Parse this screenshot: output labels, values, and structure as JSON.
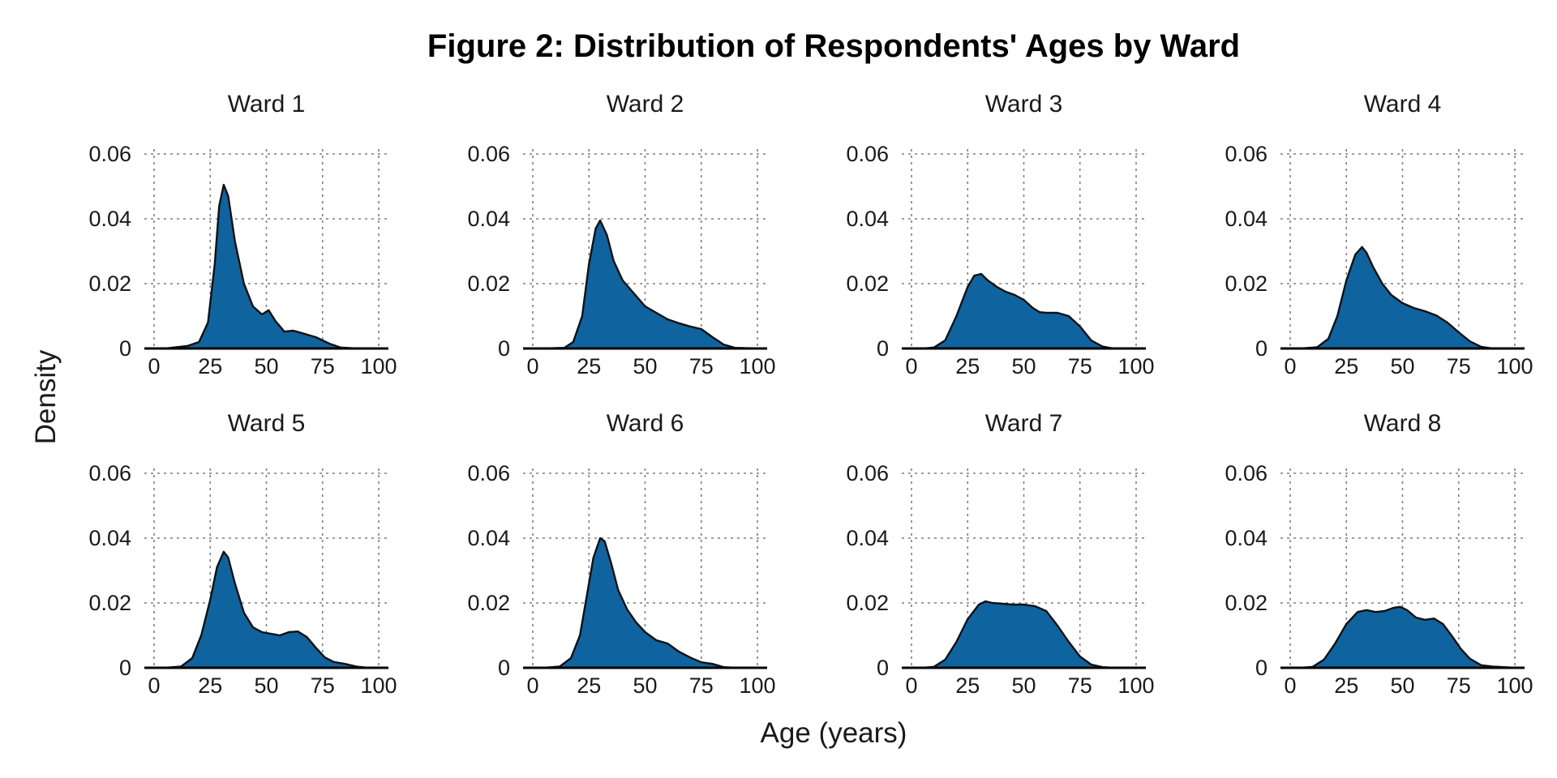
{
  "chart_data": {
    "type": "area",
    "title": "Figure 2: Distribution of Respondents' Ages by Ward",
    "xlabel": "Age (years)",
    "ylabel": "Density",
    "xlim": [
      0,
      100
    ],
    "ylim": [
      0,
      0.06
    ],
    "x_ticks": [
      0,
      25,
      50,
      75,
      100
    ],
    "x_tick_labels": [
      "0",
      "25",
      "50",
      "75",
      "100"
    ],
    "y_ticks": [
      0,
      0.02,
      0.04,
      0.06
    ],
    "y_tick_labels": [
      "0",
      "0.02",
      "0.04",
      "0.06"
    ],
    "grid": true,
    "fill_color": "#0f64a0",
    "line_color": "#111111",
    "layout": "2 rows x 4 columns",
    "panels": [
      {
        "label": "Ward 1",
        "x": [
          5,
          15,
          20,
          24,
          27,
          29,
          31,
          33,
          36,
          40,
          44,
          48,
          51,
          54,
          58,
          62,
          66,
          72,
          78,
          83,
          90,
          100
        ],
        "y": [
          0,
          0.0008,
          0.002,
          0.008,
          0.026,
          0.044,
          0.0505,
          0.047,
          0.033,
          0.02,
          0.013,
          0.0105,
          0.0118,
          0.0085,
          0.0052,
          0.0055,
          0.0047,
          0.0035,
          0.0015,
          0.0003,
          0,
          0
        ]
      },
      {
        "label": "Ward 2",
        "x": [
          5,
          14,
          18,
          22,
          25,
          28,
          30,
          33,
          36,
          40,
          45,
          50,
          55,
          60,
          65,
          70,
          75,
          80,
          85,
          90,
          100
        ],
        "y": [
          0,
          0.0002,
          0.002,
          0.01,
          0.026,
          0.037,
          0.0395,
          0.035,
          0.027,
          0.021,
          0.017,
          0.013,
          0.011,
          0.009,
          0.0078,
          0.0068,
          0.006,
          0.0035,
          0.0012,
          0.0002,
          0
        ]
      },
      {
        "label": "Ward 3",
        "x": [
          5,
          10,
          15,
          20,
          25,
          28,
          31,
          34,
          38,
          42,
          46,
          50,
          54,
          57,
          60,
          65,
          70,
          75,
          80,
          85,
          90,
          100
        ],
        "y": [
          0,
          0.0003,
          0.0025,
          0.01,
          0.019,
          0.0225,
          0.023,
          0.021,
          0.019,
          0.0175,
          0.0165,
          0.015,
          0.0125,
          0.0112,
          0.011,
          0.011,
          0.01,
          0.0068,
          0.0025,
          0.0006,
          0,
          0
        ]
      },
      {
        "label": "Ward 4",
        "x": [
          5,
          12,
          17,
          21,
          25,
          29,
          32,
          34,
          37,
          41,
          45,
          50,
          55,
          60,
          65,
          70,
          75,
          80,
          85,
          90,
          100
        ],
        "y": [
          0,
          0.0004,
          0.003,
          0.01,
          0.021,
          0.029,
          0.0313,
          0.0295,
          0.025,
          0.02,
          0.0165,
          0.014,
          0.0125,
          0.0115,
          0.0102,
          0.008,
          0.005,
          0.0022,
          0.0005,
          0,
          0
        ]
      },
      {
        "label": "Ward 5",
        "x": [
          5,
          12,
          17,
          21,
          25,
          28,
          31,
          33,
          36,
          40,
          44,
          48,
          52,
          56,
          60,
          64,
          68,
          72,
          76,
          80,
          85,
          90,
          95,
          100
        ],
        "y": [
          0,
          0.0004,
          0.003,
          0.01,
          0.021,
          0.031,
          0.0358,
          0.034,
          0.026,
          0.017,
          0.0125,
          0.011,
          0.0105,
          0.01,
          0.011,
          0.0112,
          0.0095,
          0.0062,
          0.0032,
          0.0018,
          0.0012,
          0.0004,
          0,
          0
        ]
      },
      {
        "label": "Ward 6",
        "x": [
          5,
          12,
          17,
          21,
          24,
          27,
          30,
          32,
          35,
          38,
          42,
          46,
          50,
          55,
          60,
          65,
          70,
          75,
          80,
          85,
          90,
          100
        ],
        "y": [
          0,
          0.0004,
          0.003,
          0.01,
          0.022,
          0.034,
          0.04,
          0.039,
          0.032,
          0.024,
          0.018,
          0.014,
          0.011,
          0.0085,
          0.0075,
          0.005,
          0.0032,
          0.0017,
          0.0012,
          0.0002,
          0,
          0
        ]
      },
      {
        "label": "Ward 7",
        "x": [
          5,
          10,
          15,
          20,
          25,
          30,
          33,
          36,
          40,
          45,
          50,
          55,
          60,
          65,
          70,
          75,
          80,
          85,
          90,
          95,
          100
        ],
        "y": [
          0,
          0.0003,
          0.0025,
          0.008,
          0.015,
          0.0195,
          0.0205,
          0.02,
          0.0198,
          0.0195,
          0.0195,
          0.019,
          0.0175,
          0.013,
          0.008,
          0.0035,
          0.001,
          0.0002,
          0,
          0,
          0
        ]
      },
      {
        "label": "Ward 8",
        "x": [
          5,
          10,
          15,
          20,
          25,
          30,
          34,
          38,
          42,
          46,
          49,
          52,
          56,
          60,
          64,
          68,
          72,
          76,
          80,
          85,
          90,
          95,
          100
        ],
        "y": [
          0,
          0.0003,
          0.0025,
          0.0075,
          0.0135,
          0.0172,
          0.0178,
          0.0172,
          0.0175,
          0.0185,
          0.0188,
          0.0178,
          0.0155,
          0.0148,
          0.0152,
          0.0135,
          0.0098,
          0.0058,
          0.0028,
          0.0008,
          0.0004,
          0.0002,
          0
        ]
      }
    ]
  }
}
